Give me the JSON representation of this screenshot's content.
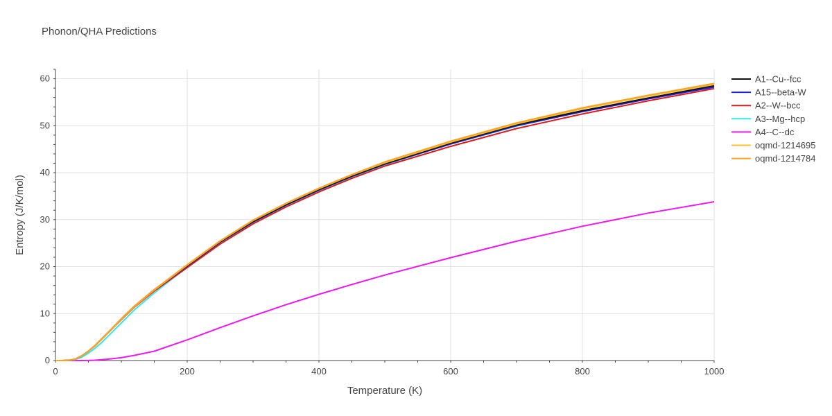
{
  "chart_data": {
    "type": "line",
    "title": "Phonon/QHA Predictions",
    "xlabel": "Temperature (K)",
    "ylabel": "Entropy (J/K/mol)",
    "xlim": [
      0,
      1000
    ],
    "ylim": [
      0,
      62
    ],
    "xticks": [
      0,
      200,
      400,
      600,
      800,
      1000
    ],
    "yticks": [
      0,
      10,
      20,
      30,
      40,
      50,
      60
    ],
    "grid": true,
    "legend_position": "right",
    "x": [
      0,
      10,
      20,
      30,
      40,
      50,
      60,
      70,
      80,
      100,
      120,
      150,
      200,
      250,
      300,
      350,
      400,
      450,
      500,
      600,
      700,
      800,
      900,
      1000
    ],
    "series": [
      {
        "name": "A1--Cu--fcc",
        "color": "#111111",
        "values": [
          0,
          0,
          0.03,
          0.3,
          1.0,
          2.0,
          3.2,
          4.6,
          6.0,
          8.9,
          11.6,
          15.1,
          20.2,
          25.3,
          29.6,
          33.2,
          36.4,
          39.3,
          41.9,
          46.3,
          50.2,
          53.2,
          55.9,
          58.5
        ]
      },
      {
        "name": "A15--beta-W",
        "color": "#1f1fe0",
        "values": [
          0,
          0,
          0.03,
          0.3,
          1.0,
          2.0,
          3.1,
          4.5,
          5.9,
          8.8,
          11.5,
          15.0,
          20.1,
          25.2,
          29.5,
          33.1,
          36.3,
          39.2,
          41.8,
          46.1,
          50.0,
          53.0,
          55.7,
          58.2
        ]
      },
      {
        "name": "A2--W--bcc",
        "color": "#e01a1a",
        "values": [
          0,
          0,
          0.03,
          0.3,
          1.0,
          2.0,
          3.1,
          4.5,
          5.9,
          8.7,
          11.4,
          14.8,
          19.8,
          24.8,
          29.1,
          32.7,
          35.9,
          38.8,
          41.4,
          45.6,
          49.4,
          52.5,
          55.3,
          57.9
        ]
      },
      {
        "name": "A3--Mg--hcp",
        "color": "#33e8e8",
        "values": [
          0,
          0,
          0.02,
          0.2,
          0.7,
          1.6,
          2.6,
          3.8,
          5.2,
          8.0,
          10.8,
          14.4,
          19.9,
          25.1,
          29.4,
          33.0,
          36.2,
          39.1,
          41.7,
          46.1,
          49.9,
          53.1,
          55.9,
          58.4
        ]
      },
      {
        "name": "A4--C--dc",
        "color": "#ee17ee",
        "values": [
          0,
          0,
          0,
          0,
          0,
          0.02,
          0.08,
          0.18,
          0.3,
          0.6,
          1.1,
          2.0,
          4.4,
          7.0,
          9.5,
          11.9,
          14.1,
          16.2,
          18.2,
          21.9,
          25.4,
          28.6,
          31.4,
          33.8
        ]
      },
      {
        "name": "oqmd-1214695",
        "color": "#f5c12b",
        "values": [
          0,
          0,
          0.03,
          0.3,
          1.0,
          2.0,
          3.1,
          4.5,
          5.9,
          8.8,
          11.5,
          15.0,
          20.3,
          25.4,
          29.8,
          33.4,
          36.6,
          39.5,
          42.1,
          46.5,
          50.4,
          53.6,
          56.3,
          58.8
        ]
      },
      {
        "name": "oqmd-1214784",
        "color": "#ffa21f",
        "values": [
          0,
          0,
          0.03,
          0.3,
          1.0,
          2.0,
          3.2,
          4.6,
          6.0,
          8.9,
          11.6,
          15.1,
          20.4,
          25.5,
          29.9,
          33.5,
          36.7,
          39.6,
          42.3,
          46.7,
          50.6,
          53.8,
          56.5,
          59.0
        ]
      }
    ]
  }
}
